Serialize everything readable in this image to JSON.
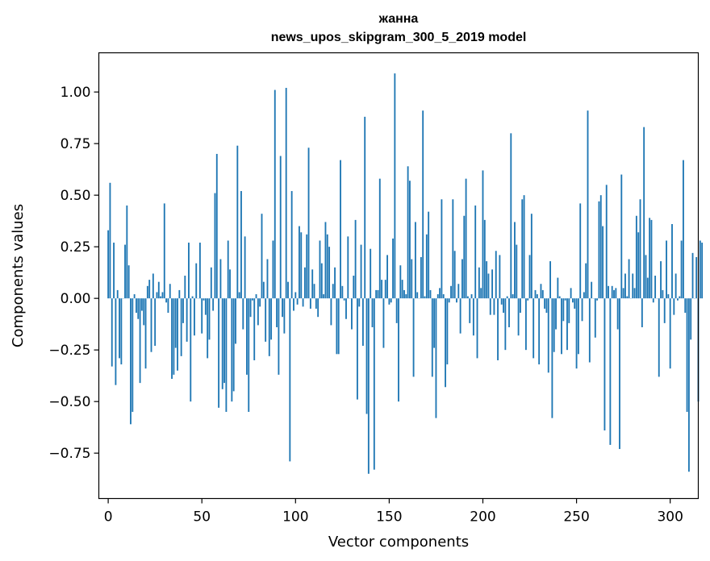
{
  "chart_data": {
    "type": "bar",
    "title": "жанна",
    "subtitle": "news_upos_skipgram_300_5_2019 model",
    "xlabel": "Vector components",
    "ylabel": "Components values",
    "xlim": [
      -5,
      315
    ],
    "ylim": [
      -0.97,
      1.19
    ],
    "xticks": [
      0,
      50,
      100,
      150,
      200,
      250,
      300
    ],
    "yticks": [
      -0.75,
      -0.5,
      -0.25,
      0.0,
      0.25,
      0.5,
      0.75,
      1.0
    ],
    "xtick_labels": [
      "0",
      "50",
      "100",
      "150",
      "200",
      "250",
      "300"
    ],
    "ytick_labels": [
      "−0.75",
      "−0.50",
      "−0.25",
      "0.00",
      "0.25",
      "0.50",
      "0.75",
      "1.00"
    ],
    "bar_color": "#1f77b4",
    "grid": false,
    "values": [
      0.33,
      0.56,
      -0.33,
      0.27,
      -0.42,
      0.04,
      -0.29,
      -0.32,
      0.0,
      0.26,
      0.45,
      0.16,
      -0.61,
      -0.55,
      0.02,
      -0.07,
      -0.1,
      -0.41,
      -0.06,
      -0.13,
      -0.34,
      0.06,
      0.09,
      -0.26,
      0.12,
      -0.23,
      0.03,
      0.08,
      0.01,
      0.03,
      0.46,
      -0.02,
      -0.07,
      0.07,
      -0.39,
      -0.37,
      -0.24,
      -0.35,
      0.04,
      -0.28,
      -0.12,
      0.11,
      -0.21,
      0.27,
      -0.5,
      0.01,
      -0.18,
      0.17,
      0.0,
      0.27,
      -0.17,
      -0.01,
      -0.08,
      -0.29,
      -0.2,
      0.15,
      -0.06,
      0.51,
      0.7,
      -0.53,
      0.19,
      -0.44,
      -0.41,
      -0.55,
      0.28,
      0.14,
      -0.5,
      -0.45,
      -0.22,
      0.74,
      0.03,
      0.52,
      -0.15,
      0.3,
      -0.37,
      -0.55,
      -0.09,
      -0.01,
      -0.3,
      0.02,
      -0.13,
      -0.04,
      0.41,
      0.08,
      -0.21,
      0.19,
      -0.28,
      -0.2,
      0.28,
      1.01,
      -0.14,
      -0.37,
      0.69,
      -0.09,
      -0.17,
      1.02,
      0.08,
      -0.79,
      0.52,
      -0.06,
      0.03,
      -0.03,
      0.35,
      0.32,
      -0.04,
      0.15,
      0.31,
      0.73,
      -0.05,
      0.14,
      0.07,
      -0.05,
      -0.09,
      0.28,
      0.17,
      0.02,
      0.37,
      0.31,
      0.25,
      -0.13,
      0.07,
      0.15,
      -0.27,
      -0.27,
      0.67,
      0.06,
      -0.01,
      -0.1,
      0.3,
      0.0,
      -0.15,
      0.11,
      0.38,
      -0.49,
      -0.04,
      0.26,
      -0.23,
      0.88,
      -0.56,
      -0.85,
      0.24,
      -0.14,
      -0.83,
      0.04,
      0.04,
      0.58,
      0.09,
      -0.24,
      0.09,
      0.21,
      -0.03,
      -0.02,
      0.29,
      1.09,
      -0.12,
      -0.5,
      0.16,
      0.09,
      0.04,
      0.02,
      0.64,
      0.57,
      0.19,
      -0.38,
      0.37,
      0.03,
      0.0,
      0.2,
      0.91,
      0.01,
      0.31,
      0.42,
      0.04,
      -0.38,
      -0.24,
      -0.58,
      0.02,
      0.05,
      0.48,
      0.02,
      -0.43,
      -0.32,
      -0.02,
      0.06,
      0.48,
      0.23,
      -0.02,
      0.07,
      -0.17,
      0.19,
      0.4,
      0.58,
      0.01,
      -0.12,
      0.02,
      -0.18,
      0.45,
      -0.29,
      0.15,
      0.05,
      0.62,
      0.38,
      0.18,
      0.12,
      -0.08,
      0.14,
      -0.08,
      0.23,
      -0.3,
      0.21,
      -0.03,
      -0.07,
      -0.25,
      0.01,
      -0.14,
      0.8,
      0.02,
      0.37,
      0.26,
      -0.18,
      -0.07,
      0.48,
      0.5,
      -0.25,
      -0.01,
      0.21,
      0.41,
      -0.29,
      0.04,
      0.02,
      -0.32,
      0.07,
      0.04,
      -0.05,
      -0.07,
      -0.36,
      0.18,
      -0.58,
      -0.26,
      -0.15,
      0.1,
      0.01,
      -0.27,
      -0.11,
      -0.01,
      -0.25,
      -0.12,
      0.05,
      -0.02,
      -0.05,
      -0.34,
      -0.27,
      0.46,
      -0.11,
      0.03,
      0.17,
      0.91,
      -0.31,
      0.08,
      0.0,
      -0.19,
      -0.01,
      0.47,
      0.5,
      0.35,
      -0.64,
      0.55,
      0.06,
      -0.71,
      0.06,
      0.04,
      0.05,
      -0.15,
      -0.73,
      0.6,
      0.05,
      0.12,
      0.01,
      0.19,
      0.0,
      0.12,
      0.05,
      0.4,
      0.32,
      0.48,
      -0.14,
      0.83,
      0.21,
      0.1,
      0.39,
      0.38,
      -0.02,
      0.11,
      0.0,
      -0.38,
      0.18,
      0.04,
      -0.12,
      0.28,
      0.02,
      -0.34,
      0.36,
      -0.08,
      0.12,
      -0.01,
      0.01,
      0.28,
      0.67,
      -0.07,
      -0.55,
      -0.84,
      -0.2,
      0.22,
      0.0,
      0.2,
      -0.5,
      0.28,
      0.27
    ]
  }
}
